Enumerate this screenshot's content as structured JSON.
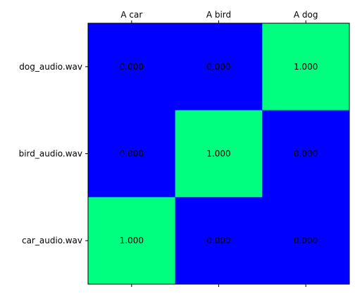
{
  "chart_data": {
    "type": "heatmap",
    "x_tick_labels": [
      "A car",
      "A bird",
      "A dog"
    ],
    "x_tick_position": "top",
    "y_tick_labels": [
      "dog_audio.wav",
      "bird_audio.wav",
      "car_audio.wav"
    ],
    "values": [
      [
        0.0,
        0.0,
        1.0
      ],
      [
        0.0,
        1.0,
        0.0
      ],
      [
        1.0,
        0.0,
        0.0
      ]
    ],
    "value_labels": [
      [
        "0.000",
        "0.000",
        "1.000"
      ],
      [
        "0.000",
        "1.000",
        "0.000"
      ],
      [
        "1.000",
        "0.000",
        "0.000"
      ]
    ],
    "color_range": [
      0,
      1
    ],
    "colors": {
      "low": "#0000ff",
      "high": "#00ff7f"
    },
    "colormap": "winter",
    "grid": false
  }
}
